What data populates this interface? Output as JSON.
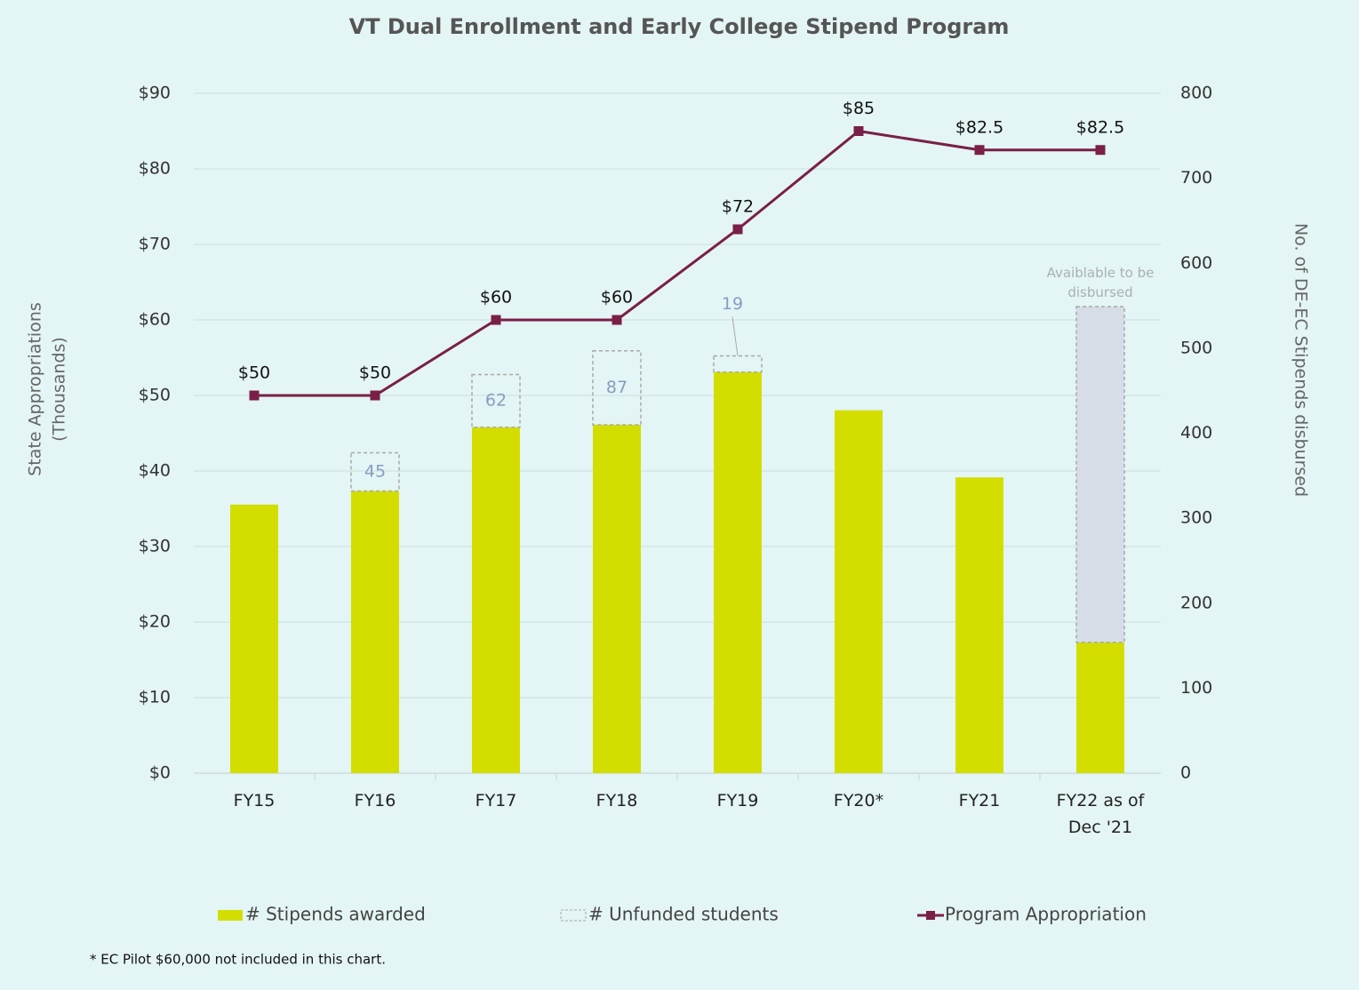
{
  "chart_data": {
    "type": "bar-line",
    "title": "VT Dual Enrollment and Early College Stipend Program",
    "categories": [
      "FY15",
      "FY16",
      "FY17",
      "FY18",
      "FY19",
      "FY20*",
      "FY21",
      "FY22 as of Dec '21"
    ],
    "y_label": [
      "State Appropriations",
      "(Thousands)"
    ],
    "y2_label": "No. of DE-EC Stipends disbursed",
    "ylim": [
      0,
      90
    ],
    "yticks": [
      {
        "value": 0,
        "label": "$0"
      },
      {
        "value": 10,
        "label": "$10"
      },
      {
        "value": 20,
        "label": "$20"
      },
      {
        "value": 30,
        "label": "$30"
      },
      {
        "value": 40,
        "label": "$40"
      },
      {
        "value": 50,
        "label": "$50"
      },
      {
        "value": 60,
        "label": "$60"
      },
      {
        "value": 70,
        "label": "$70"
      },
      {
        "value": 80,
        "label": "$80"
      },
      {
        "value": 90,
        "label": "$90"
      }
    ],
    "y2lim": [
      0,
      800
    ],
    "y2ticks": [
      0,
      100,
      200,
      300,
      400,
      500,
      600,
      700,
      800
    ],
    "grid": true,
    "series": [
      {
        "name": "# Stipends awarded",
        "type": "bar",
        "axis": "y2",
        "color": "#d3de00",
        "values": [
          316,
          332,
          407,
          410,
          472,
          427,
          348,
          154
        ]
      },
      {
        "name": "# Unfunded students",
        "type": "stacked-bar",
        "axis": "y2",
        "color": "#a9a9a9",
        "values": [
          null,
          45,
          62,
          87,
          19,
          null,
          null,
          null
        ]
      },
      {
        "name": "Program Appropriation",
        "type": "line",
        "axis": "y",
        "color": "#7a1f47",
        "values": [
          50,
          50,
          60,
          60,
          72,
          85,
          82.5,
          82.5
        ],
        "value_labels": [
          "$50",
          "$50",
          "$60",
          "$60",
          "$72",
          "$85",
          "$82.5",
          "$82.5"
        ]
      }
    ],
    "available": {
      "text": "Avaiblable to be disbursed",
      "value": 395,
      "color": "#d6dde6"
    },
    "footnote": "* EC Pilot $60,000 not included in this chart."
  }
}
